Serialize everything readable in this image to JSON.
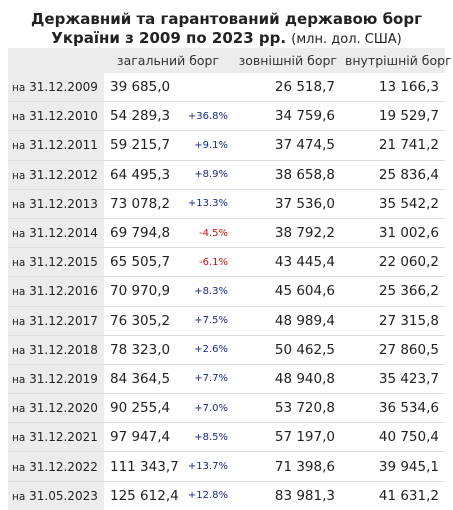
{
  "title": {
    "line1": "Державний та гарантований державою борг",
    "line2": "України з 2009 по 2023 рр.",
    "units": "(млн. дол. США)"
  },
  "headers": {
    "total": "загальний борг",
    "external": "зовнішній борг",
    "internal": "внутрішній борг"
  },
  "rows": [
    {
      "prefix": "на",
      "date": "31.12.2009",
      "total": "39 685,0",
      "change": "",
      "dir": "",
      "external": "26 518,7",
      "internal": "13 166,3"
    },
    {
      "prefix": "на",
      "date": "31.12.2010",
      "total": "54 289,3",
      "change": "+36.8%",
      "dir": "up",
      "external": "34 759,6",
      "internal": "19 529,7"
    },
    {
      "prefix": "на",
      "date": "31.12.2011",
      "total": "59 215,7",
      "change": "+9.1%",
      "dir": "up",
      "external": "37 474,5",
      "internal": "21 741,2"
    },
    {
      "prefix": "на",
      "date": "31.12.2012",
      "total": "64 495,3",
      "change": "+8.9%",
      "dir": "up",
      "external": "38 658,8",
      "internal": "25 836,4"
    },
    {
      "prefix": "на",
      "date": "31.12.2013",
      "total": "73 078,2",
      "change": "+13.3%",
      "dir": "up",
      "external": "37 536,0",
      "internal": "35 542,2"
    },
    {
      "prefix": "на",
      "date": "31.12.2014",
      "total": "69 794,8",
      "change": "-4.5%",
      "dir": "down",
      "external": "38 792,2",
      "internal": "31 002,6"
    },
    {
      "prefix": "на",
      "date": "31.12.2015",
      "total": "65 505,7",
      "change": "-6.1%",
      "dir": "down",
      "external": "43 445,4",
      "internal": "22 060,2"
    },
    {
      "prefix": "на",
      "date": "31.12.2016",
      "total": "70 970,9",
      "change": "+8.3%",
      "dir": "up",
      "external": "45 604,6",
      "internal": "25 366,2"
    },
    {
      "prefix": "на",
      "date": "31.12.2017",
      "total": "76 305,2",
      "change": "+7.5%",
      "dir": "up",
      "external": "48 989,4",
      "internal": "27 315,8"
    },
    {
      "prefix": "на",
      "date": "31.12.2018",
      "total": "78 323,0",
      "change": "+2.6%",
      "dir": "up",
      "external": "50 462,5",
      "internal": "27 860,5"
    },
    {
      "prefix": "на",
      "date": "31.12.2019",
      "total": "84 364,5",
      "change": "+7.7%",
      "dir": "up",
      "external": "48 940,8",
      "internal": "35 423,7"
    },
    {
      "prefix": "на",
      "date": "31.12.2020",
      "total": "90 255,4",
      "change": "+7.0%",
      "dir": "up",
      "external": "53 720,8",
      "internal": "36 534,6"
    },
    {
      "prefix": "на",
      "date": "31.12.2021",
      "total": "97 947,4",
      "change": "+8.5%",
      "dir": "up",
      "external": "57 197,0",
      "internal": "40 750,4"
    },
    {
      "prefix": "на",
      "date": "31.12.2022",
      "total": "111 343,7",
      "change": "+13.7%",
      "dir": "up",
      "external": "71 398,6",
      "internal": "39 945,1"
    },
    {
      "prefix": "на",
      "date": "31.05.2023",
      "total": "125 612,4",
      "change": "+12.8%",
      "dir": "up",
      "external": "83 981,3",
      "internal": "41 631,2"
    }
  ],
  "colors": {
    "up": "#1a2a8a",
    "down": "#cc1111",
    "header_bg": "#ececec"
  }
}
